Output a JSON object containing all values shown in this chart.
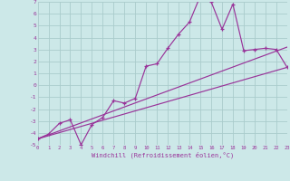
{
  "bg_color": "#cce8e8",
  "grid_color": "#aacccc",
  "line_color": "#993399",
  "xlim": [
    0,
    23
  ],
  "ylim": [
    -5,
    7
  ],
  "xlabel": "Windchill (Refroidissement éolien,°C)",
  "xtick_vals": [
    0,
    1,
    2,
    3,
    4,
    5,
    6,
    7,
    8,
    9,
    10,
    11,
    12,
    13,
    14,
    15,
    16,
    17,
    18,
    19,
    20,
    21,
    22,
    23
  ],
  "ytick_vals": [
    -5,
    -4,
    -3,
    -2,
    -1,
    0,
    1,
    2,
    3,
    4,
    5,
    6,
    7
  ],
  "series_x": [
    0,
    1,
    2,
    3,
    4,
    5,
    6,
    7,
    8,
    9,
    10,
    11,
    12,
    13,
    14,
    15,
    16,
    17,
    18,
    19,
    20,
    21,
    22,
    23
  ],
  "series_y": [
    -4.5,
    -4.1,
    -3.2,
    -2.9,
    -5.0,
    -3.3,
    -2.7,
    -1.3,
    -1.5,
    -1.1,
    1.6,
    1.8,
    3.1,
    4.3,
    5.3,
    7.5,
    7.0,
    4.7,
    6.8,
    2.9,
    3.0,
    3.1,
    3.0,
    1.5
  ],
  "line1_x": [
    0,
    23
  ],
  "line1_y": [
    -4.5,
    1.5
  ],
  "line2_x": [
    0,
    23
  ],
  "line2_y": [
    -4.5,
    3.2
  ],
  "fig_width": 3.2,
  "fig_height": 2.0,
  "dpi": 100
}
